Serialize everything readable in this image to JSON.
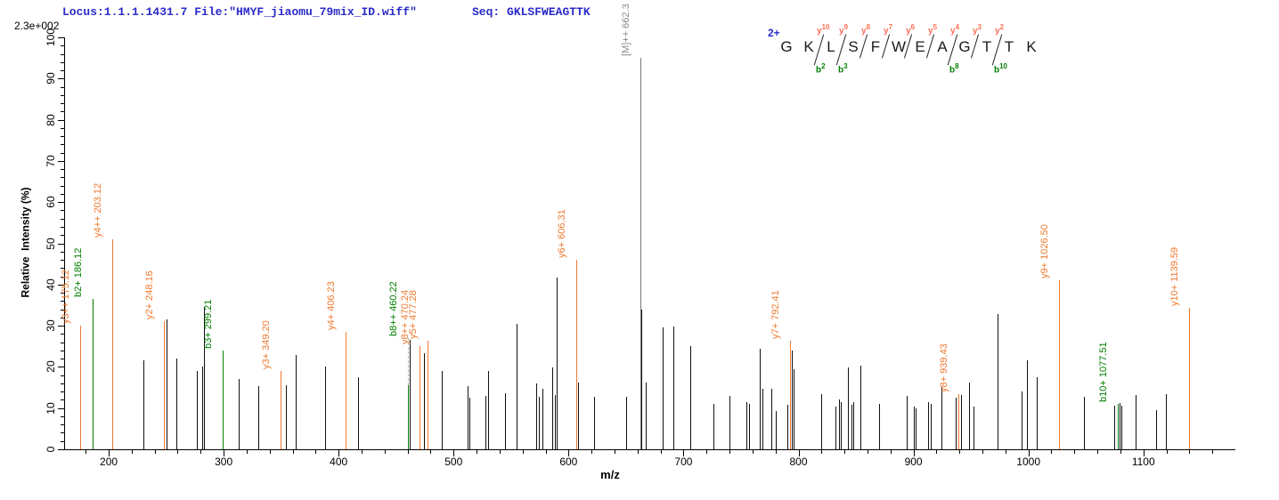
{
  "header": {
    "locus_file": "Locus:1.1.1.1431.7 File:\"HMYF_jiaomu_79mix_ID.wiff\"",
    "seq_label": "Seq:",
    "seq_value": "GKLSFWEAGTTK",
    "max_intensity": "2.3e+002"
  },
  "annotation": {
    "charge": "2+",
    "residues": [
      "G",
      "K",
      "L",
      "S",
      "F",
      "W",
      "E",
      "A",
      "G",
      "T",
      "T",
      "K"
    ],
    "cleavages": [
      {
        "after": 2,
        "y": "y10",
        "b": "b2"
      },
      {
        "after": 3,
        "y": "y9",
        "b": "b3"
      },
      {
        "after": 4,
        "y": "y8"
      },
      {
        "after": 5,
        "y": "y7"
      },
      {
        "after": 6,
        "y": "y6"
      },
      {
        "after": 7,
        "y": "y5"
      },
      {
        "after": 8,
        "y": "y4",
        "b": "b8"
      },
      {
        "after": 9,
        "y": "y3"
      },
      {
        "after": 10,
        "y": "y2",
        "b": "b10"
      }
    ]
  },
  "colors": {
    "header_blue": "#2a2ac8",
    "y_ion": "#ee7a30",
    "b_ion": "#008000",
    "precursor": "#8a8a8a",
    "precursor_peak": "#777777",
    "unmatched_peak": "#111111",
    "seq_y_label": "#fa7055",
    "seq_b_label": "#008000",
    "axis": "#000000"
  },
  "chart_data": {
    "type": "bar",
    "subtype": "ms2-centroid-spectrum",
    "xlabel": "m/z",
    "ylabel": "Relative  Intensity (%)",
    "xlim": [
      162,
      1180
    ],
    "ylim": [
      0,
      100
    ],
    "x_major_ticks": [
      200,
      300,
      400,
      500,
      600,
      700,
      800,
      900,
      1000,
      1100
    ],
    "x_minor_step": 20,
    "y_major_step": 10,
    "y_minor_step": 2,
    "legend": "none",
    "grid": false,
    "labeled_peaks": [
      {
        "label": "y3++ 175.12",
        "mz": 175.12,
        "intensity": 30,
        "series": "y"
      },
      {
        "label": "b2+ 186.12",
        "mz": 186.12,
        "intensity": 36.5,
        "series": "b"
      },
      {
        "label": "y4++ 203.12",
        "mz": 203.12,
        "intensity": 51,
        "series": "y"
      },
      {
        "label": "y2+ 248.16",
        "mz": 248.16,
        "intensity": 31,
        "series": "y"
      },
      {
        "label": "b3+ 299.21",
        "mz": 299.21,
        "intensity": 24,
        "series": "b"
      },
      {
        "label": "y3+ 349.20",
        "mz": 349.2,
        "intensity": 19,
        "series": "y"
      },
      {
        "label": "y4+ 406.23",
        "mz": 406.23,
        "intensity": 28.5,
        "series": "y"
      },
      {
        "label": "b8++ 460.22",
        "mz": 460.22,
        "intensity": 15.6,
        "series": "b",
        "label_at": 27
      },
      {
        "label": "y8++ 470.24",
        "mz": 470.24,
        "intensity": 25,
        "series": "y"
      },
      {
        "label": "y5+ 477.28",
        "mz": 477.28,
        "intensity": 26.3,
        "series": "y"
      },
      {
        "label": "y6+ 606.31",
        "mz": 606.31,
        "intensity": 46,
        "series": "y"
      },
      {
        "label": "[M]++ 662.3",
        "mz": 662.3,
        "intensity": 95,
        "series": "precursor"
      },
      {
        "label": "y7+ 792.41",
        "mz": 792.41,
        "intensity": 26.3,
        "series": "y"
      },
      {
        "label": "y8+ 939.43",
        "mz": 939.43,
        "intensity": 13.3,
        "series": "y"
      },
      {
        "label": "y9+ 1026.50",
        "mz": 1026.5,
        "intensity": 41,
        "series": "y"
      },
      {
        "label": "b10+ 1077.51",
        "mz": 1077.51,
        "intensity": 11.1,
        "series": "b"
      },
      {
        "label": "y10+ 1139.59",
        "mz": 1139.59,
        "intensity": 34.3,
        "series": "y"
      }
    ],
    "unlabeled_peaks": [
      [
        230,
        21.5
      ],
      [
        250,
        31.5
      ],
      [
        259,
        22
      ],
      [
        277,
        19
      ],
      [
        281,
        20
      ],
      [
        283,
        34.5
      ],
      [
        313,
        17
      ],
      [
        330,
        15.4
      ],
      [
        354,
        15.5
      ],
      [
        363,
        23
      ],
      [
        388,
        20
      ],
      [
        417,
        17.6
      ],
      [
        461.5,
        26.5
      ],
      [
        474,
        23.4
      ],
      [
        490,
        19
      ],
      [
        512,
        15.4
      ],
      [
        514,
        12.6
      ],
      [
        528,
        13
      ],
      [
        530,
        19
      ],
      [
        545,
        13.5
      ],
      [
        554.5,
        30.4
      ],
      [
        572,
        16
      ],
      [
        574,
        12.8
      ],
      [
        577,
        14.7
      ],
      [
        586,
        19.8
      ],
      [
        588,
        13.2
      ],
      [
        590,
        41.6
      ],
      [
        608,
        16.3
      ],
      [
        622,
        12.7
      ],
      [
        650,
        12.7
      ],
      [
        663.5,
        34
      ],
      [
        667.4,
        16.3
      ],
      [
        681.7,
        29.6
      ],
      [
        690.8,
        29.7
      ],
      [
        705.6,
        25
      ],
      [
        726,
        11
      ],
      [
        739.7,
        13
      ],
      [
        755,
        11.5
      ],
      [
        757,
        11
      ],
      [
        766,
        24.5
      ],
      [
        769,
        14.7
      ],
      [
        776,
        14.7
      ],
      [
        780,
        9.3
      ],
      [
        790,
        10.8
      ],
      [
        794,
        24
      ],
      [
        796,
        19.5
      ],
      [
        820,
        13.3
      ],
      [
        832,
        10.4
      ],
      [
        835,
        12.2
      ],
      [
        837,
        11.5
      ],
      [
        843,
        19.8
      ],
      [
        846,
        10.8
      ],
      [
        848,
        11.5
      ],
      [
        853.5,
        20.2
      ],
      [
        870,
        11
      ],
      [
        894,
        13
      ],
      [
        900,
        10.4
      ],
      [
        902,
        10
      ],
      [
        913,
        11.5
      ],
      [
        915,
        11
      ],
      [
        924.5,
        15.2
      ],
      [
        937,
        12.6
      ],
      [
        941,
        13.1
      ],
      [
        948,
        16.2
      ],
      [
        952,
        10.4
      ],
      [
        973,
        32.8
      ],
      [
        994,
        14
      ],
      [
        999,
        21.7
      ],
      [
        1007,
        17.6
      ],
      [
        1048,
        12.8
      ],
      [
        1075,
        10.5
      ],
      [
        1079,
        11.3
      ],
      [
        1081,
        10.5
      ],
      [
        1093,
        13.1
      ],
      [
        1111,
        9.5
      ],
      [
        1119.5,
        13.3
      ]
    ]
  }
}
